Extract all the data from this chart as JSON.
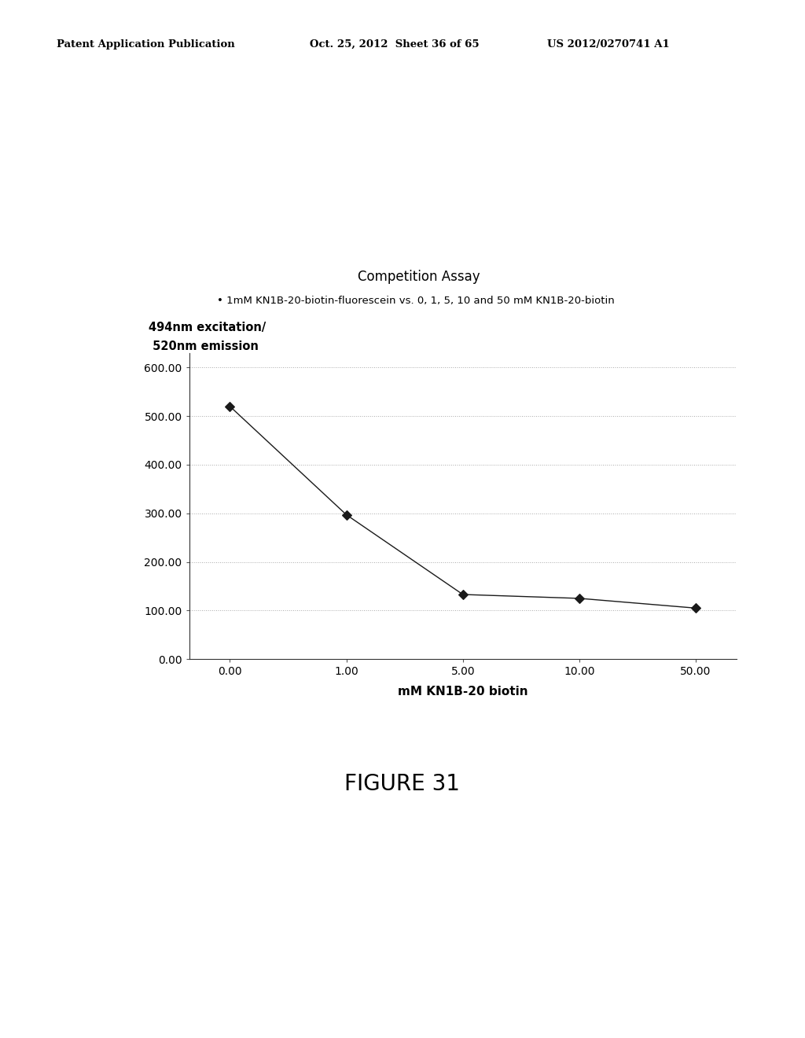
{
  "title": "Competition Assay",
  "subtitle": "• 1mM KN1B-20-biotin-fluorescein vs. 0, 1, 5, 10 and 50 mM KN1B-20-biotin",
  "ylabel_line1": "494nm excitation/",
  "ylabel_line2": " 520nm emission",
  "xlabel": "mM KN1B-20 biotin",
  "x_values": [
    0,
    1,
    2,
    3,
    4
  ],
  "x_labels": [
    "0.00",
    "1.00",
    "5.00",
    "10.00",
    "50.00"
  ],
  "y_values": [
    520,
    297,
    133,
    125,
    105
  ],
  "ylim": [
    0,
    630
  ],
  "yticks": [
    0.0,
    100.0,
    200.0,
    300.0,
    400.0,
    500.0,
    600.0
  ],
  "ytick_labels": [
    "0.00",
    "100.00",
    "200.00",
    "300.00",
    "400.00",
    "500.00",
    "600.00"
  ],
  "line_color": "#1a1a1a",
  "marker": "D",
  "marker_size": 6,
  "marker_color": "#1a1a1a",
  "figure_caption": "FIGURE 31",
  "header_left": "Patent Application Publication",
  "header_center": "Oct. 25, 2012  Sheet 36 of 65",
  "header_right": "US 2012/0270741 A1",
  "background_color": "#ffffff",
  "grid_color": "#aaaaaa"
}
